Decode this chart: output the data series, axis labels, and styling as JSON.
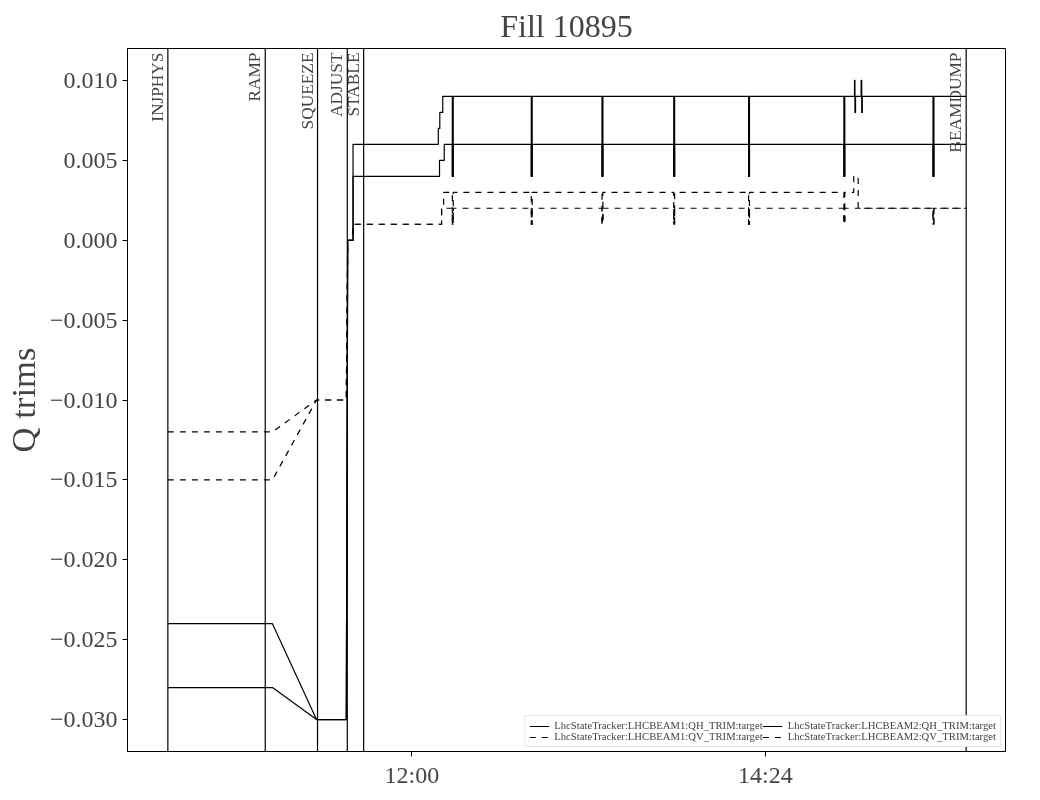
{
  "chart_data": {
    "type": "line",
    "title": "Fill 10895",
    "ylabel": "Q trims",
    "xlim": [
      10.07,
      16.03
    ],
    "ylim": [
      -0.032,
      0.012
    ],
    "xticks": [
      {
        "value": 12,
        "label": "12:00"
      },
      {
        "value": 14.4,
        "label": "14:24"
      }
    ],
    "yticks": [
      {
        "value": -0.03,
        "label": "−0.030"
      },
      {
        "value": -0.025,
        "label": "−0.025"
      },
      {
        "value": -0.02,
        "label": "−0.020"
      },
      {
        "value": -0.015,
        "label": "−0.015"
      },
      {
        "value": -0.01,
        "label": "−0.010"
      },
      {
        "value": -0.005,
        "label": "−0.005"
      },
      {
        "value": 0,
        "label": "0.000"
      },
      {
        "value": 0.005,
        "label": "0.005"
      },
      {
        "value": 0.01,
        "label": "0.010"
      }
    ],
    "grid": false,
    "legend": "bottom right",
    "ref_lines": [
      {
        "axis": "x",
        "value": 10.344,
        "label": "INJPHYS",
        "color": "#000000"
      },
      {
        "axis": "x",
        "value": 11.005,
        "label": "RAMP",
        "color": "#000000"
      },
      {
        "axis": "x",
        "value": 11.36,
        "label": "SQUEEZE",
        "color": "#000000"
      },
      {
        "axis": "x",
        "value": 11.562,
        "label": "ADJUST",
        "color": "#000000"
      },
      {
        "axis": "x",
        "value": 11.673,
        "label": "STABLE",
        "color": "#000000"
      },
      {
        "axis": "x",
        "value": 15.763,
        "label": "BEAMDUMP",
        "color": "#000000"
      }
    ],
    "series": [
      {
        "name": "LhcStateTracker:LHCBEAM1:QH_TRIM:target",
        "color": "#000000",
        "line_style": "solid",
        "x": [
          10.344,
          11.054,
          11.353,
          11.555,
          11.565,
          11.601,
          11.601,
          12.18,
          12.18,
          12.19,
          12.19,
          12.21,
          12.21,
          12.275,
          12.275,
          12.281,
          12.281,
          12.811,
          12.811,
          12.817,
          12.817,
          13.291,
          13.291,
          13.297,
          13.297,
          13.778,
          13.778,
          13.784,
          13.784,
          14.286,
          14.286,
          14.292,
          14.292,
          14.933,
          14.933,
          14.939,
          14.939,
          15.005,
          15.005,
          15.008,
          15.008,
          15.012,
          15.012,
          15.05,
          15.05,
          15.054,
          15.054,
          15.058,
          15.058,
          15.538,
          15.538,
          15.544,
          15.544,
          15.763
        ],
        "values": [
          -0.024,
          -0.024,
          -0.03,
          -0.03,
          0.0,
          0.0,
          0.006,
          0.006,
          0.007,
          0.007,
          0.008,
          0.008,
          0.009,
          0.009,
          0.004,
          0.004,
          0.009,
          0.009,
          0.004,
          0.004,
          0.009,
          0.009,
          0.004,
          0.004,
          0.009,
          0.009,
          0.004,
          0.004,
          0.009,
          0.009,
          0.004,
          0.004,
          0.009,
          0.009,
          0.004,
          0.004,
          0.009,
          0.009,
          0.01,
          0.01,
          0.008,
          0.008,
          0.009,
          0.009,
          0.01,
          0.01,
          0.008,
          0.008,
          0.009,
          0.009,
          0.004,
          0.004,
          0.009,
          0.009
        ]
      },
      {
        "name": "LhcStateTracker:LHCBEAM1:QV_TRIM:target",
        "color": "#000000",
        "line_style": "dashed",
        "x": [
          10.344,
          11.054,
          11.353,
          11.555,
          11.565,
          11.601,
          11.601,
          12.202,
          12.202,
          12.216,
          12.216,
          12.275,
          12.275,
          12.281,
          12.281,
          12.811,
          12.811,
          12.817,
          12.817,
          13.291,
          13.291,
          13.297,
          13.297,
          13.778,
          13.778,
          13.784,
          13.784,
          14.286,
          14.286,
          14.292,
          14.292,
          14.933,
          14.933,
          14.939,
          14.939,
          15.0,
          15.0,
          15.03,
          15.03,
          15.538,
          15.538,
          15.544,
          15.544,
          15.763
        ],
        "values": [
          -0.012,
          -0.012,
          -0.01,
          -0.01,
          0.0,
          0.0,
          0.001,
          0.001,
          0.002,
          0.002,
          0.003,
          0.003,
          0.001,
          0.001,
          0.003,
          0.003,
          0.001,
          0.001,
          0.003,
          0.003,
          0.001,
          0.001,
          0.003,
          0.003,
          0.001,
          0.001,
          0.003,
          0.003,
          0.001,
          0.001,
          0.003,
          0.003,
          0.001,
          0.001,
          0.003,
          0.003,
          0.004,
          0.004,
          0.002,
          0.002,
          0.001,
          0.001,
          0.002,
          0.002
        ]
      },
      {
        "name": "LhcStateTracker:LHCBEAM2:QH_TRIM:target",
        "color": "#000000",
        "line_style": "solid",
        "x": [
          10.344,
          11.054,
          11.353,
          11.555,
          11.565,
          11.601,
          11.601,
          12.188,
          12.188,
          12.22,
          12.22,
          12.275,
          12.275,
          12.281,
          12.281,
          12.811,
          12.811,
          12.817,
          12.817,
          13.291,
          13.291,
          13.297,
          13.297,
          13.778,
          13.778,
          13.784,
          13.784,
          14.286,
          14.286,
          14.292,
          14.292,
          14.933,
          14.933,
          14.939,
          14.939,
          15.538,
          15.538,
          15.544,
          15.544,
          15.763
        ],
        "values": [
          -0.028,
          -0.028,
          -0.03,
          -0.03,
          0.0,
          0.0,
          0.004,
          0.004,
          0.005,
          0.005,
          0.006,
          0.006,
          0.004,
          0.004,
          0.006,
          0.006,
          0.004,
          0.004,
          0.006,
          0.006,
          0.004,
          0.004,
          0.006,
          0.006,
          0.004,
          0.004,
          0.006,
          0.006,
          0.004,
          0.004,
          0.006,
          0.006,
          0.004,
          0.004,
          0.006,
          0.006,
          0.004,
          0.004,
          0.006,
          0.006
        ]
      },
      {
        "name": "LhcStateTracker:LHCBEAM2:QV_TRIM:target",
        "color": "#000000",
        "line_style": "dashed",
        "x": [
          10.344,
          11.054,
          11.353,
          11.555,
          11.565,
          11.601,
          11.601,
          12.202,
          12.202,
          12.275,
          12.275,
          12.281,
          12.281,
          12.811,
          12.811,
          12.817,
          12.817,
          13.291,
          13.291,
          13.297,
          13.297,
          13.778,
          13.778,
          13.784,
          13.784,
          14.286,
          14.286,
          14.292,
          14.292,
          14.933,
          14.933,
          14.939,
          14.939,
          15.538,
          15.538,
          15.544,
          15.544,
          15.763
        ],
        "values": [
          -0.015,
          -0.015,
          -0.01,
          -0.01,
          0.0,
          0.0,
          0.001,
          0.001,
          0.002,
          0.002,
          0.001,
          0.001,
          0.002,
          0.002,
          0.001,
          0.001,
          0.002,
          0.002,
          0.001,
          0.001,
          0.002,
          0.002,
          0.001,
          0.001,
          0.002,
          0.002,
          0.001,
          0.001,
          0.002,
          0.002,
          0.001,
          0.001,
          0.002,
          0.002,
          0.001,
          0.001,
          0.002,
          0.002
        ]
      }
    ]
  }
}
